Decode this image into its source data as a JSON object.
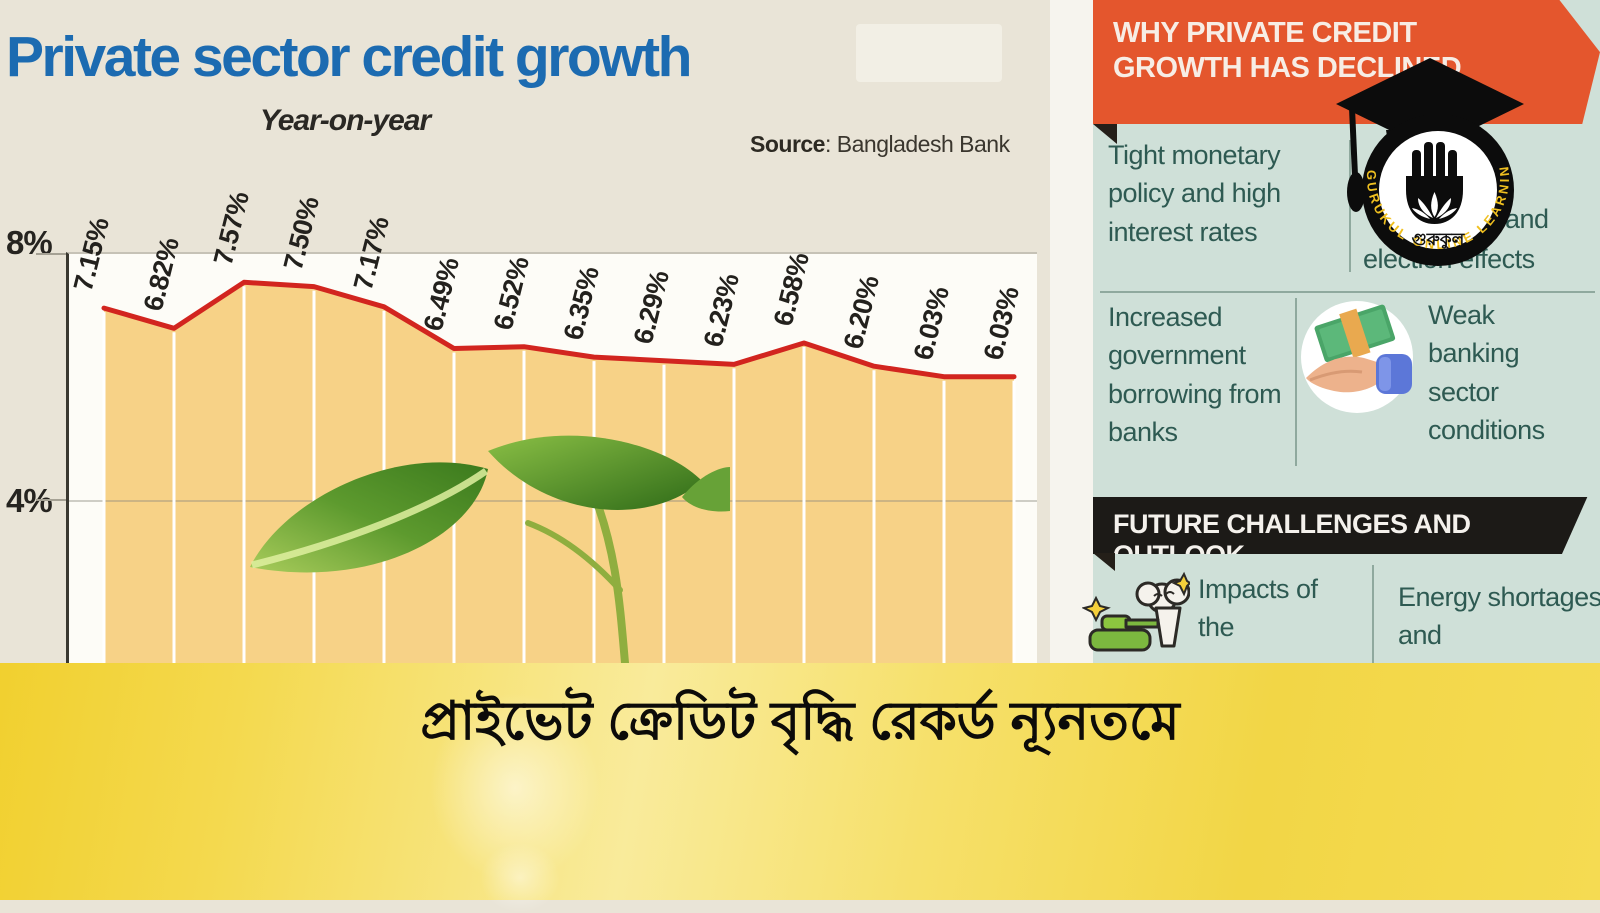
{
  "page": {
    "background": "#e9e4d7"
  },
  "chart": {
    "title": "Private sector credit growth",
    "subtitle": "Year-on-year",
    "source_label": "Source",
    "source_rest": ": Bangladesh Bank",
    "y_tick_top": "8%",
    "y_tick_mid": "4%"
  },
  "chart_data": {
    "type": "area",
    "title": "Private sector credit growth",
    "subtitle": "Year-on-year",
    "source": "Source: Bangladesh Bank",
    "values": [
      7.15,
      6.82,
      7.57,
      7.5,
      7.17,
      6.49,
      6.52,
      6.35,
      6.29,
      6.23,
      6.58,
      6.2,
      6.03,
      6.03
    ],
    "point_labels": [
      "7.15%",
      "6.82%",
      "7.57%",
      "7.50%",
      "7.17%",
      "6.49%",
      "6.52%",
      "6.35%",
      "6.29%",
      "6.23%",
      "6.58%",
      "6.20%",
      "6.03%",
      "6.03%"
    ],
    "y_axis": {
      "tick_values": [
        8,
        4
      ],
      "tick_labels": [
        "8%",
        "4%"
      ],
      "unit": "percent"
    },
    "x_axis": {
      "tick_labels_visible": false
    },
    "ylim_visible_top": 8,
    "grid": true,
    "legend": false,
    "line_color": "#d2251f",
    "fill_color": "#f7d287"
  },
  "sidebar": {
    "why_header": "WHY PRIVATE CREDIT GROWTH HAS DECLINED",
    "reason_1": "Tight monetary policy and high interest rates",
    "reason_2_line1": "ty and",
    "reason_2_line2": "election effects",
    "reason_3": "Increased government borrowing from banks",
    "reason_4": "Weak banking sector conditions",
    "future_header": "FUTURE CHALLENGES AND OUTLOOK",
    "outlook_1": "Impacts of the",
    "outlook_2": "Energy shortages and",
    "colors": {
      "header_orange": "#e4562d",
      "panel_teal": "#cfe0d8",
      "text_teal": "#2e5a52",
      "header_black": "#1c1a17"
    }
  },
  "logo": {
    "curved_text": "GURUKUL ONLINE LEARNING",
    "brand_bengali": "গুরুকুল"
  },
  "banner": {
    "headline": "প্রাইভেট ক্রেডিট বৃদ্ধি রেকর্ড ন্যূনতমে",
    "background": "#f5d937"
  }
}
